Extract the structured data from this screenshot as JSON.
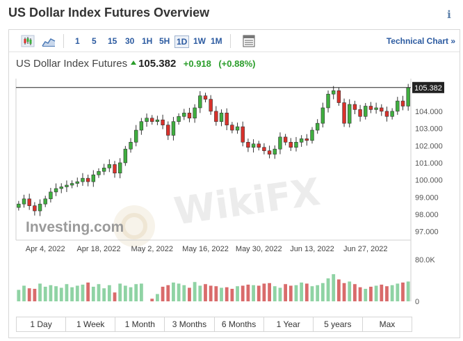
{
  "page": {
    "title": "US Dollar Index Futures Overview",
    "info_label": "i"
  },
  "toolbar": {
    "timeframes": [
      "1",
      "5",
      "15",
      "30",
      "1H",
      "5H",
      "1D",
      "1W",
      "1M"
    ],
    "active_timeframe": "1D",
    "technical_link": "Technical Chart »"
  },
  "quote": {
    "name": "US Dollar Index Futures",
    "price": "105.382",
    "change": "+0.918",
    "change_pct": "(+0.88%)"
  },
  "colors": {
    "up": "#3fae3f",
    "down": "#d9312b",
    "vol_up": "#8fd3a4",
    "vol_down": "#d96b6b",
    "link": "#2b5aa0"
  },
  "range_buttons": [
    "1 Day",
    "1 Week",
    "1 Month",
    "3 Months",
    "6 Months",
    "1 Year",
    "5 years",
    "Max"
  ],
  "chart_data": {
    "type": "candlestick",
    "price_label": "105.382",
    "ylim": [
      96.5,
      105.9
    ],
    "y_ticks": [
      "104.000",
      "103.000",
      "102.000",
      "101.000",
      "100.000",
      "99.000",
      "98.000",
      "97.000"
    ],
    "x_ticks": [
      "Apr 4, 2022",
      "Apr 18, 2022",
      "May 2, 2022",
      "May 16, 2022",
      "May 30, 2022",
      "Jun 13, 2022",
      "Jun 27, 2022"
    ],
    "volume_ticks": [
      "80.0K",
      "0"
    ],
    "volume_ylim": [
      0,
      80000
    ],
    "watermark": "WikiFX",
    "logo": "Investing.com",
    "closes": [
      98.6,
      98.9,
      98.5,
      98.2,
      98.6,
      98.9,
      99.3,
      99.5,
      99.6,
      99.7,
      99.8,
      99.9,
      100.1,
      99.9,
      100.3,
      100.5,
      100.7,
      100.9,
      100.4,
      101.0,
      101.8,
      102.2,
      102.9,
      103.4,
      103.6,
      103.4,
      103.5,
      103.2,
      102.6,
      103.4,
      103.7,
      103.9,
      103.6,
      104.2,
      104.9,
      104.7,
      104.0,
      103.4,
      103.9,
      103.2,
      102.9,
      103.1,
      102.2,
      101.9,
      102.1,
      101.9,
      101.7,
      101.5,
      101.8,
      102.5,
      102.2,
      101.9,
      102.2,
      102.4,
      102.3,
      102.9,
      103.3,
      104.2,
      105.0,
      105.2,
      104.5,
      103.3,
      104.4,
      104.1,
      103.7,
      104.3,
      104.1,
      104.2,
      104.0,
      103.7,
      104.0,
      104.6,
      104.3,
      105.382
    ],
    "volumes": [
      22000,
      30000,
      25000,
      24000,
      34000,
      28000,
      31000,
      29000,
      26000,
      33000,
      27000,
      30000,
      32000,
      36000,
      28000,
      33000,
      25000,
      31000,
      17000,
      34000,
      30000,
      27000,
      33000,
      34000,
      0,
      5000,
      14000,
      28000,
      31000,
      36000,
      34000,
      31000,
      26000,
      37000,
      30000,
      33000,
      30000,
      29000,
      26000,
      27000,
      24000,
      29000,
      30000,
      32000,
      31000,
      30000,
      34000,
      35000,
      29000,
      26000,
      33000,
      30000,
      31000,
      36000,
      34000,
      29000,
      31000,
      35000,
      44000,
      52000,
      42000,
      35000,
      38000,
      33000,
      27000,
      24000,
      28000,
      30000,
      32000,
      29000,
      31000,
      34000,
      36000,
      38000
    ]
  }
}
